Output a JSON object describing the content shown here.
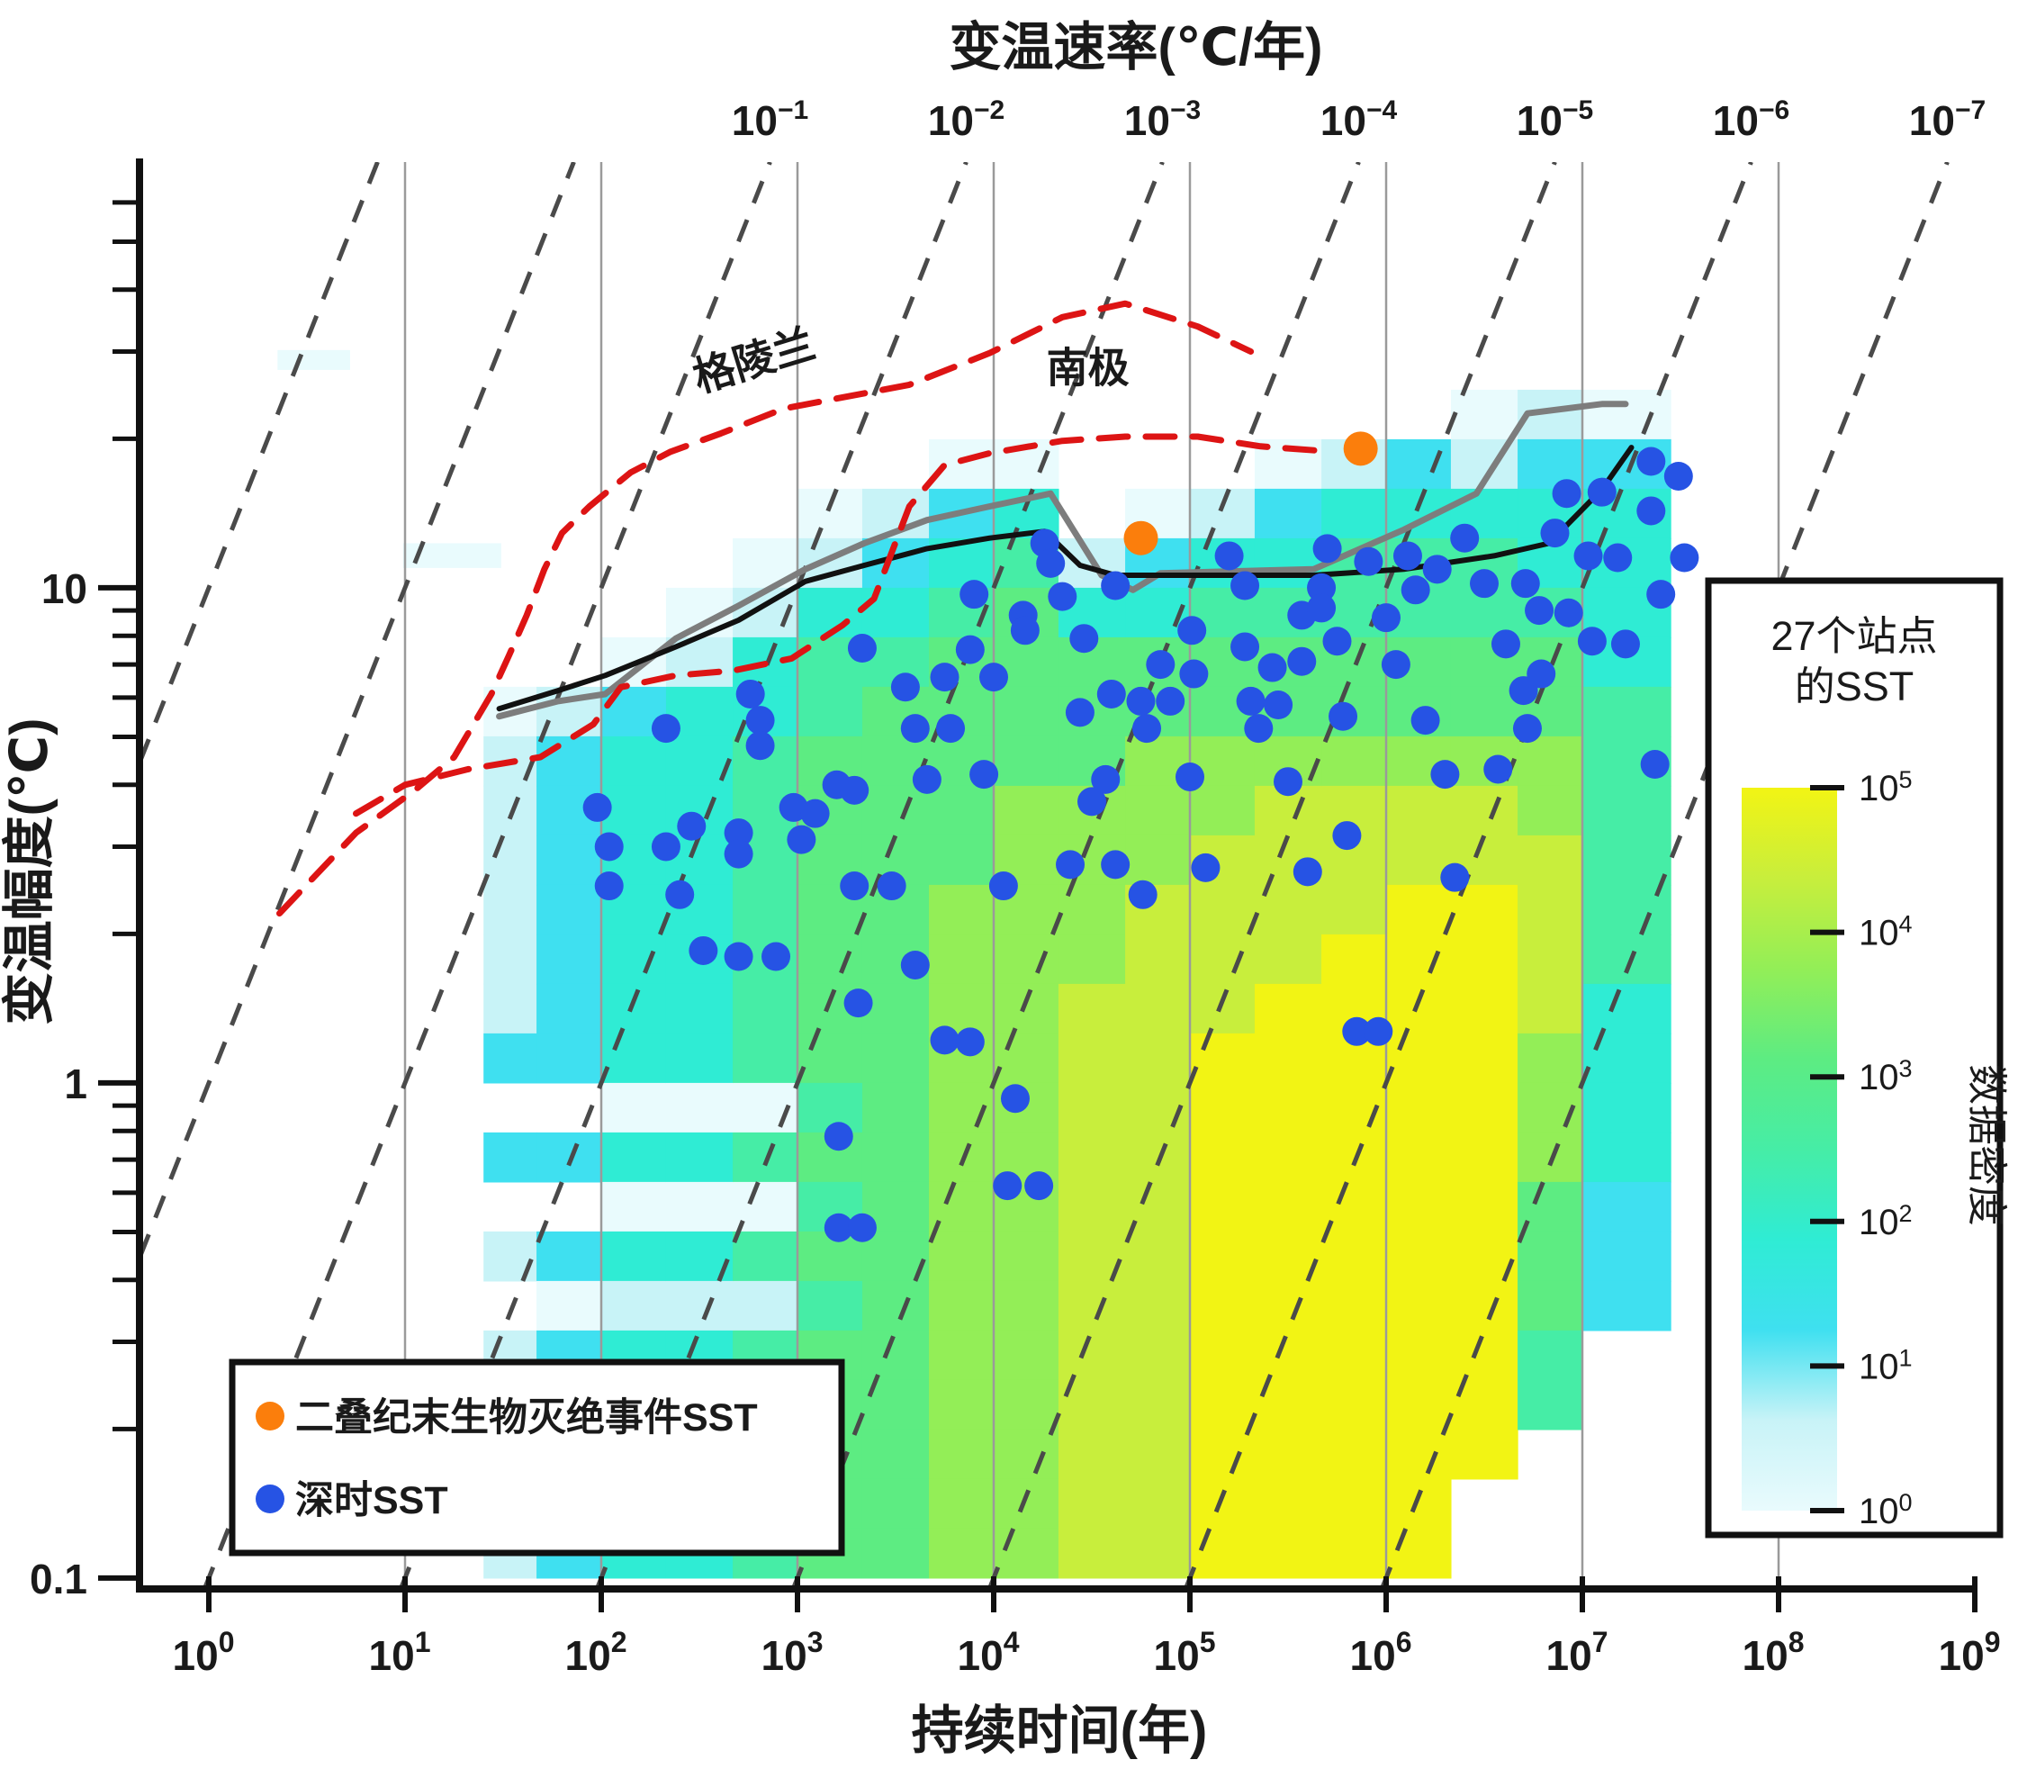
{
  "chart_data": {
    "type": "heatmap",
    "top_axis_title": "变温速率(℃/年)",
    "xlabel": "持续时间(年)",
    "ylabel": "变温幅度(℃)",
    "x_tick_exponents": [
      0,
      1,
      2,
      3,
      4,
      5,
      6,
      7,
      8,
      9
    ],
    "top_tick_exponents": [
      -1,
      -2,
      -3,
      -4,
      -5,
      -6,
      -7
    ],
    "y_major_ticks": [
      {
        "value": 10,
        "label": "10"
      },
      {
        "value": 1,
        "label": "1"
      },
      {
        "value": 0.1,
        "label": "0.1"
      }
    ],
    "y_minor_ticks": [
      0.2,
      0.3,
      0.4,
      0.5,
      0.6,
      0.7,
      0.8,
      0.9,
      2,
      3,
      4,
      5,
      6,
      7,
      8,
      9,
      20,
      30,
      40,
      50,
      60
    ],
    "xlim_log10_years": [
      -0.35,
      9.0
    ],
    "ylim_log10_degC": [
      -1.022,
      1.86
    ],
    "grid_verticals_log10": [
      1,
      2,
      3,
      4,
      5,
      6,
      7,
      8
    ],
    "rate_isolines_log10_degC_per_year": [
      1,
      0,
      -1,
      -2,
      -3,
      -4,
      -5,
      -6,
      -7
    ],
    "legend": {
      "items": [
        {
          "label": "二叠纪末生物灭绝事件SST",
          "color": "#fb7e0c",
          "marker": "dot"
        },
        {
          "label": "深时SST",
          "color": "#2653e4",
          "marker": "dot"
        }
      ]
    },
    "colorbar": {
      "title_line1": "27个站点",
      "title_line2": "的SST",
      "side_label": "数据密度",
      "tick_exponents": [
        5,
        4,
        3,
        2,
        1,
        0
      ]
    },
    "colors": {
      "blue_dot": "#2653e4",
      "orange_dot": "#fb7e0c",
      "red_dashed": "#dd1414",
      "black_line": "#111111",
      "gray_line": "#7d7d7d",
      "grid_line": "#9a9a9a",
      "rate_line": "#4a4a4a",
      "colormap": [
        "#ffffff",
        "#e9fbfd",
        "#c8f3f7",
        "#3fe0f0",
        "#2fecd4",
        "#46eda6",
        "#5dec82",
        "#93ee57",
        "#c8ee3c",
        "#f2f414"
      ]
    },
    "curve_labels": [
      {
        "text": "格陵兰",
        "log10_t": 2.8,
        "amp": 27.0,
        "rotate_deg": -17
      },
      {
        "text": "南极",
        "log10_t": 4.48,
        "amp": 26.0,
        "rotate_deg": 0
      }
    ],
    "greenland_curve": [
      [
        0.36,
        2.2
      ],
      [
        0.75,
        3.2
      ],
      [
        1.05,
        3.9
      ],
      [
        1.25,
        4.55
      ],
      [
        1.44,
        6.1
      ],
      [
        1.53,
        7.3
      ],
      [
        1.62,
        8.8
      ],
      [
        1.71,
        10.9
      ],
      [
        1.8,
        12.9
      ],
      [
        1.94,
        14.6
      ],
      [
        2.15,
        17.1
      ],
      [
        2.35,
        18.8
      ],
      [
        2.61,
        20.5
      ],
      [
        2.93,
        23.0
      ],
      [
        3.34,
        24.7
      ],
      [
        3.57,
        25.7
      ],
      [
        3.98,
        29.8
      ],
      [
        4.35,
        35.2
      ],
      [
        4.67,
        37.5
      ],
      [
        5.04,
        33.7
      ],
      [
        5.31,
        30.0
      ]
    ],
    "antarctic_curve": [
      [
        0.75,
        3.5
      ],
      [
        1.0,
        4.0
      ],
      [
        1.32,
        4.3
      ],
      [
        1.69,
        4.55
      ],
      [
        1.96,
        5.3
      ],
      [
        2.1,
        6.3
      ],
      [
        2.38,
        6.65
      ],
      [
        2.67,
        6.8
      ],
      [
        2.97,
        7.2
      ],
      [
        3.23,
        8.4
      ],
      [
        3.39,
        9.5
      ],
      [
        3.57,
        14.6
      ],
      [
        3.75,
        17.7
      ],
      [
        3.98,
        18.7
      ],
      [
        4.35,
        19.8
      ],
      [
        4.67,
        20.2
      ],
      [
        5.04,
        20.2
      ],
      [
        5.36,
        19.3
      ],
      [
        5.67,
        18.9
      ]
    ],
    "black_envelope": [
      [
        1.48,
        5.7
      ],
      [
        1.78,
        6.2
      ],
      [
        2.02,
        6.65
      ],
      [
        2.38,
        7.6
      ],
      [
        2.7,
        8.6
      ],
      [
        3.04,
        10.3
      ],
      [
        3.34,
        11.1
      ],
      [
        3.66,
        12.0
      ],
      [
        3.98,
        12.6
      ],
      [
        4.26,
        13.0
      ],
      [
        4.44,
        11.1
      ],
      [
        4.62,
        10.6
      ],
      [
        5.63,
        10.6
      ],
      [
        6.09,
        10.9
      ],
      [
        6.55,
        11.6
      ],
      [
        6.83,
        12.3
      ],
      [
        7.1,
        15.8
      ],
      [
        7.25,
        19.2
      ]
    ],
    "gray_envelope": [
      [
        1.48,
        5.5
      ],
      [
        1.78,
        5.9
      ],
      [
        2.02,
        6.1
      ],
      [
        2.38,
        7.9
      ],
      [
        2.7,
        9.2
      ],
      [
        3.04,
        10.9
      ],
      [
        3.34,
        12.3
      ],
      [
        3.66,
        13.7
      ],
      [
        3.98,
        14.6
      ],
      [
        4.19,
        15.2
      ],
      [
        4.29,
        15.5
      ],
      [
        4.55,
        10.6
      ],
      [
        4.71,
        9.9
      ],
      [
        4.85,
        10.7
      ],
      [
        5.63,
        10.9
      ],
      [
        6.09,
        13.1
      ],
      [
        6.46,
        15.5
      ],
      [
        6.72,
        22.5
      ],
      [
        7.1,
        23.5
      ],
      [
        7.22,
        23.5
      ]
    ],
    "orange_points": [
      [
        4.75,
        12.6
      ],
      [
        5.87,
        19.1
      ]
    ],
    "blue_points": [
      [
        1.98,
        3.6
      ],
      [
        2.04,
        3.0
      ],
      [
        2.04,
        2.5
      ],
      [
        2.33,
        5.2
      ],
      [
        2.33,
        3.0
      ],
      [
        2.4,
        2.4
      ],
      [
        2.46,
        3.3
      ],
      [
        2.52,
        1.85
      ],
      [
        2.7,
        3.2
      ],
      [
        2.7,
        2.9
      ],
      [
        2.7,
        1.8
      ],
      [
        2.76,
        6.1
      ],
      [
        2.81,
        5.4
      ],
      [
        2.81,
        4.8
      ],
      [
        2.89,
        1.8
      ],
      [
        2.98,
        3.6
      ],
      [
        3.02,
        3.1
      ],
      [
        3.09,
        3.5
      ],
      [
        3.2,
        4.0
      ],
      [
        3.21,
        0.78
      ],
      [
        3.21,
        0.51
      ],
      [
        3.29,
        3.9
      ],
      [
        3.29,
        2.5
      ],
      [
        3.31,
        1.45
      ],
      [
        3.33,
        7.55
      ],
      [
        3.33,
        0.51
      ],
      [
        3.48,
        2.5
      ],
      [
        3.55,
        6.3
      ],
      [
        3.6,
        5.2
      ],
      [
        3.6,
        1.73
      ],
      [
        3.66,
        4.1
      ],
      [
        3.75,
        6.6
      ],
      [
        3.75,
        1.22
      ],
      [
        3.78,
        5.2
      ],
      [
        3.88,
        7.5
      ],
      [
        3.88,
        1.21
      ],
      [
        3.9,
        9.7
      ],
      [
        3.95,
        4.2
      ],
      [
        4.0,
        6.6
      ],
      [
        4.05,
        2.5
      ],
      [
        4.07,
        0.62
      ],
      [
        4.11,
        0.93
      ],
      [
        4.15,
        8.8
      ],
      [
        4.16,
        8.2
      ],
      [
        4.23,
        0.62
      ],
      [
        4.26,
        12.3
      ],
      [
        4.29,
        11.2
      ],
      [
        4.35,
        9.6
      ],
      [
        4.39,
        2.76
      ],
      [
        4.44,
        5.6
      ],
      [
        4.46,
        7.9
      ],
      [
        4.5,
        3.7
      ],
      [
        4.57,
        4.1
      ],
      [
        4.6,
        6.1
      ],
      [
        4.62,
        10.1
      ],
      [
        4.62,
        2.76
      ],
      [
        4.75,
        5.9
      ],
      [
        4.76,
        2.4
      ],
      [
        4.78,
        5.2
      ],
      [
        4.85,
        7.0
      ],
      [
        4.9,
        5.9
      ],
      [
        5.01,
        8.2
      ],
      [
        5.02,
        6.7
      ],
      [
        5.0,
        4.15
      ],
      [
        5.08,
        2.72
      ],
      [
        5.2,
        11.6
      ],
      [
        5.28,
        10.1
      ],
      [
        5.28,
        7.6
      ],
      [
        5.31,
        5.9
      ],
      [
        5.35,
        5.2
      ],
      [
        5.42,
        6.9
      ],
      [
        5.45,
        5.8
      ],
      [
        5.5,
        4.06
      ],
      [
        5.57,
        8.8
      ],
      [
        5.57,
        7.1
      ],
      [
        5.6,
        2.67
      ],
      [
        5.67,
        10.0
      ],
      [
        5.67,
        9.1
      ],
      [
        5.7,
        12.0
      ],
      [
        5.75,
        7.8
      ],
      [
        5.78,
        5.5
      ],
      [
        5.8,
        3.16
      ],
      [
        5.85,
        1.27
      ],
      [
        5.91,
        11.3
      ],
      [
        5.96,
        1.27
      ],
      [
        6.0,
        8.7
      ],
      [
        6.05,
        7.0
      ],
      [
        6.11,
        11.6
      ],
      [
        6.15,
        9.9
      ],
      [
        6.2,
        5.4
      ],
      [
        6.26,
        10.9
      ],
      [
        6.3,
        4.2
      ],
      [
        6.35,
        2.6
      ],
      [
        6.4,
        12.6
      ],
      [
        6.5,
        10.2
      ],
      [
        6.57,
        4.3
      ],
      [
        6.61,
        7.7
      ],
      [
        6.7,
        6.2
      ],
      [
        6.71,
        10.2
      ],
      [
        6.72,
        5.2
      ],
      [
        6.78,
        9.0
      ],
      [
        6.79,
        6.7
      ],
      [
        6.86,
        12.9
      ],
      [
        6.92,
        15.5
      ],
      [
        6.93,
        8.9
      ],
      [
        7.03,
        11.6
      ],
      [
        7.05,
        7.8
      ],
      [
        7.1,
        15.6
      ],
      [
        7.18,
        11.5
      ],
      [
        7.22,
        7.7
      ],
      [
        7.35,
        18.0
      ],
      [
        7.35,
        14.3
      ],
      [
        7.37,
        4.4
      ],
      [
        7.4,
        9.7
      ],
      [
        7.49,
        16.8
      ],
      [
        7.52,
        11.5
      ]
    ],
    "heatmap": {
      "row_top_log10_amp": 1.5,
      "row_step_log10": 0.1,
      "rows": 25,
      "density_digit_is_log10_density_times_2": true,
      "columns": [
        {
          "x0": 1.4,
          "x1": 1.67,
          "d": "0000000122222230302020222"
        },
        {
          "x0": 1.67,
          "x1": 2.0,
          "d": "0000000233333330303133333"
        },
        {
          "x0": 2.0,
          "x1": 2.33,
          "d": "0000001344444441414244444"
        },
        {
          "x0": 2.33,
          "x1": 2.67,
          "d": "0000012444444441414244444"
        },
        {
          "x0": 2.67,
          "x1": 3.0,
          "d": "0000124455555551515255555"
        },
        {
          "x0": 3.0,
          "x1": 3.33,
          "d": "0001245566666665656566666"
        },
        {
          "x0": 3.33,
          "x1": 3.67,
          "d": "0002345666666666666666666"
        },
        {
          "x0": 3.67,
          "x1": 4.0,
          "d": "0013456666677777777777777"
        },
        {
          "x0": 4.0,
          "x1": 4.33,
          "d": "0014566667777777777777777"
        },
        {
          "x0": 4.33,
          "x1": 4.67,
          "d": "0000246667777888888888888"
        },
        {
          "x0": 4.67,
          "x1": 5.0,
          "d": "0001346677788888888888888"
        },
        {
          "x0": 5.0,
          "x1": 5.33,
          "d": "0002456677888899999999999"
        },
        {
          "x0": 5.33,
          "x1": 5.67,
          "d": "0013456678888999999999999"
        },
        {
          "x0": 5.67,
          "x1": 6.0,
          "d": "0024556678889999999999999"
        },
        {
          "x0": 6.0,
          "x1": 6.33,
          "d": "0034556678899999999999999"
        },
        {
          "x0": 6.33,
          "x1": 6.67,
          "d": "0124556678899999999999900"
        },
        {
          "x0": 6.67,
          "x1": 7.0,
          "d": "0234456677888877766655000"
        },
        {
          "x0": 7.0,
          "x1": 7.45,
          "d": "0134444555555444433300000"
        }
      ],
      "patches": [
        {
          "x0": 0.35,
          "x1": 0.72,
          "a0": 1.44,
          "a1": 1.48,
          "digit": 1
        },
        {
          "x0": 0.99,
          "x1": 1.49,
          "a0": 1.04,
          "a1": 1.09,
          "digit": 1
        }
      ]
    }
  }
}
